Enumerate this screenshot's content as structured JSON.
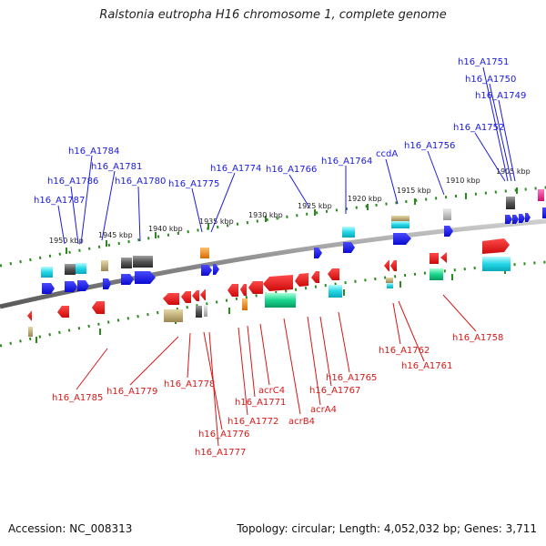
{
  "title": "Ralstonia eutropha H16 chromosome 1, complete genome",
  "footer": {
    "accession": "Accession: NC_008313",
    "summary": "Topology: circular; Length: 4,052,032 bp; Genes: 3,711"
  },
  "scale_labels": [
    "1950 kbp",
    "1945 kbp",
    "1940 kbp",
    "1935 kbp",
    "1930 kbp",
    "1925 kbp",
    "1920 kbp",
    "1915 kbp",
    "1910 kbp",
    "1905 kbp"
  ],
  "forward_gene_labels": [
    "h16_A1751",
    "h16_A1750",
    "h16_A1749",
    "h16_A1752",
    "h16_A1784",
    "h16_A1781",
    "h16_A1786",
    "h16_A1780",
    "h16_A1787",
    "h16_A1774",
    "h16_A1766",
    "h16_A1775",
    "h16_A1764",
    "ccdA",
    "h16_A1756"
  ],
  "reverse_gene_labels": [
    "h16_A1785",
    "h16_A1779",
    "h16_A1778",
    "acrC4",
    "h16_A1771",
    "h16_A1772",
    "h16_A1776",
    "h16_A1777",
    "acrB4",
    "acrA4",
    "h16_A1767",
    "h16_A1765",
    "h16_A1762",
    "h16_A1761",
    "h16_A1758"
  ],
  "colors": {
    "forward_text": "#1a1adf",
    "reverse_text": "#d61818",
    "forward_gene": "#1010ee",
    "reverse_gene": "#e81010",
    "cyan_feature": "#22d6e6",
    "green_feature": "#18d68e",
    "gray_feature": "#555555",
    "tan_feature": "#b9a66f",
    "orange_feature": "#f08a10",
    "pink_feature": "#ee1a8a",
    "scale_dots": "#2a8a1e",
    "backbone": "#8a8a8a"
  }
}
